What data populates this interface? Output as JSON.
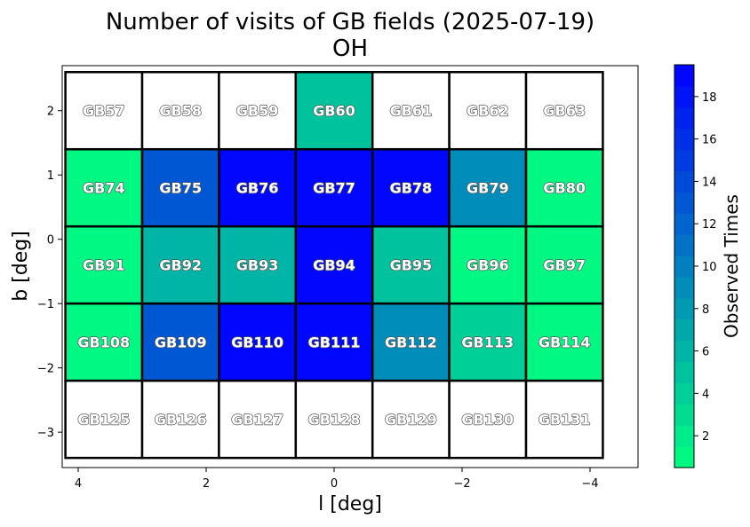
{
  "chart_data": {
    "type": "heatmap",
    "title": "Number of visits of GB fields (2025-07-19)",
    "subtitle": "OH",
    "xlabel": "l [deg]",
    "ylabel": "b [deg]",
    "xlim": [
      4.25,
      -4.75
    ],
    "ylim": [
      -3.55,
      2.7
    ],
    "xticks": [
      {
        "value": 4,
        "label": "4"
      },
      {
        "value": 2,
        "label": "2"
      },
      {
        "value": 0,
        "label": "0"
      },
      {
        "value": -2,
        "label": "−2"
      },
      {
        "value": -4,
        "label": "−4"
      }
    ],
    "yticks": [
      {
        "value": 2,
        "label": "2"
      },
      {
        "value": 1,
        "label": "1"
      },
      {
        "value": 0,
        "label": "0"
      },
      {
        "value": -1,
        "label": "−1"
      },
      {
        "value": -2,
        "label": "−2"
      },
      {
        "value": -3,
        "label": "−3"
      }
    ],
    "colorbar": {
      "label": "Observed Times",
      "min": 0.5,
      "max": 19.5,
      "ticks": [
        2,
        4,
        6,
        8,
        10,
        12,
        14,
        16,
        18
      ],
      "color_low": "#00ff80",
      "color_high": "#0000ff",
      "levels": 19
    },
    "field_size": 1.2,
    "fields": [
      {
        "name": "GB57",
        "l": 3.6,
        "b": 2.0,
        "visits": 0
      },
      {
        "name": "GB58",
        "l": 2.4,
        "b": 2.0,
        "visits": 0
      },
      {
        "name": "GB59",
        "l": 1.2,
        "b": 2.0,
        "visits": 0
      },
      {
        "name": "GB60",
        "l": 0.0,
        "b": 2.0,
        "visits": 5
      },
      {
        "name": "GB61",
        "l": -1.2,
        "b": 2.0,
        "visits": 0
      },
      {
        "name": "GB62",
        "l": -2.4,
        "b": 2.0,
        "visits": 0
      },
      {
        "name": "GB63",
        "l": -3.6,
        "b": 2.0,
        "visits": 0
      },
      {
        "name": "GB74",
        "l": 3.6,
        "b": 0.8,
        "visits": 1
      },
      {
        "name": "GB75",
        "l": 2.4,
        "b": 0.8,
        "visits": 13
      },
      {
        "name": "GB76",
        "l": 1.2,
        "b": 0.8,
        "visits": 19
      },
      {
        "name": "GB77",
        "l": 0.0,
        "b": 0.8,
        "visits": 19
      },
      {
        "name": "GB78",
        "l": -1.2,
        "b": 0.8,
        "visits": 19
      },
      {
        "name": "GB79",
        "l": -2.4,
        "b": 0.8,
        "visits": 9
      },
      {
        "name": "GB80",
        "l": -3.6,
        "b": 0.8,
        "visits": 1
      },
      {
        "name": "GB91",
        "l": 3.6,
        "b": -0.4,
        "visits": 1
      },
      {
        "name": "GB92",
        "l": 2.4,
        "b": -0.4,
        "visits": 6
      },
      {
        "name": "GB93",
        "l": 1.2,
        "b": -0.4,
        "visits": 6
      },
      {
        "name": "GB94",
        "l": 0.0,
        "b": -0.4,
        "visits": 19
      },
      {
        "name": "GB95",
        "l": -1.2,
        "b": -0.4,
        "visits": 5
      },
      {
        "name": "GB96",
        "l": -2.4,
        "b": -0.4,
        "visits": 1
      },
      {
        "name": "GB97",
        "l": -3.6,
        "b": -0.4,
        "visits": 1
      },
      {
        "name": "GB108",
        "l": 3.6,
        "b": -1.6,
        "visits": 1
      },
      {
        "name": "GB109",
        "l": 2.4,
        "b": -1.6,
        "visits": 13
      },
      {
        "name": "GB110",
        "l": 1.2,
        "b": -1.6,
        "visits": 19
      },
      {
        "name": "GB111",
        "l": 0.0,
        "b": -1.6,
        "visits": 19
      },
      {
        "name": "GB112",
        "l": -1.2,
        "b": -1.6,
        "visits": 9
      },
      {
        "name": "GB113",
        "l": -2.4,
        "b": -1.6,
        "visits": 4
      },
      {
        "name": "GB114",
        "l": -3.6,
        "b": -1.6,
        "visits": 1
      },
      {
        "name": "GB125",
        "l": 3.6,
        "b": -2.8,
        "visits": 0
      },
      {
        "name": "GB126",
        "l": 2.4,
        "b": -2.8,
        "visits": 0
      },
      {
        "name": "GB127",
        "l": 1.2,
        "b": -2.8,
        "visits": 0
      },
      {
        "name": "GB128",
        "l": 0.0,
        "b": -2.8,
        "visits": 0
      },
      {
        "name": "GB129",
        "l": -1.2,
        "b": -2.8,
        "visits": 0
      },
      {
        "name": "GB130",
        "l": -2.4,
        "b": -2.8,
        "visits": 0
      },
      {
        "name": "GB131",
        "l": -3.6,
        "b": -2.8,
        "visits": 0
      }
    ]
  }
}
